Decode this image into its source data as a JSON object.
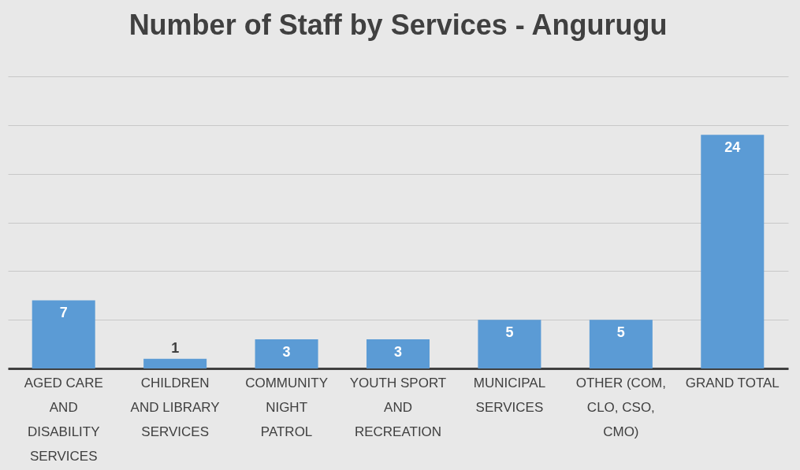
{
  "chart_data": {
    "type": "bar",
    "title": "Number of Staff by Services - Angurugu",
    "categories": [
      "AGED CARE AND DISABILITY SERVICES",
      "CHILDREN AND LIBRARY SERVICES",
      "COMMUNITY NIGHT PATROL",
      "YOUTH SPORT AND RECREATION",
      "MUNICIPAL SERVICES",
      "OTHER (COM, CLO, CSO, CMO)",
      "GRAND TOTAL"
    ],
    "values": [
      7,
      1,
      3,
      3,
      5,
      5,
      24
    ],
    "color": "#5b9bd5",
    "ylim": [
      0,
      30
    ],
    "yticks": [
      {
        "value": 0,
        "label": null
      },
      {
        "value": 5,
        "label": null
      },
      {
        "value": 10,
        "label": null
      },
      {
        "value": 15,
        "label": null
      },
      {
        "value": 20,
        "label": null
      },
      {
        "value": 25,
        "label": null
      },
      {
        "value": 30,
        "label": null
      }
    ],
    "grid": "y",
    "tick_labels": "x",
    "data_labels": true
  }
}
